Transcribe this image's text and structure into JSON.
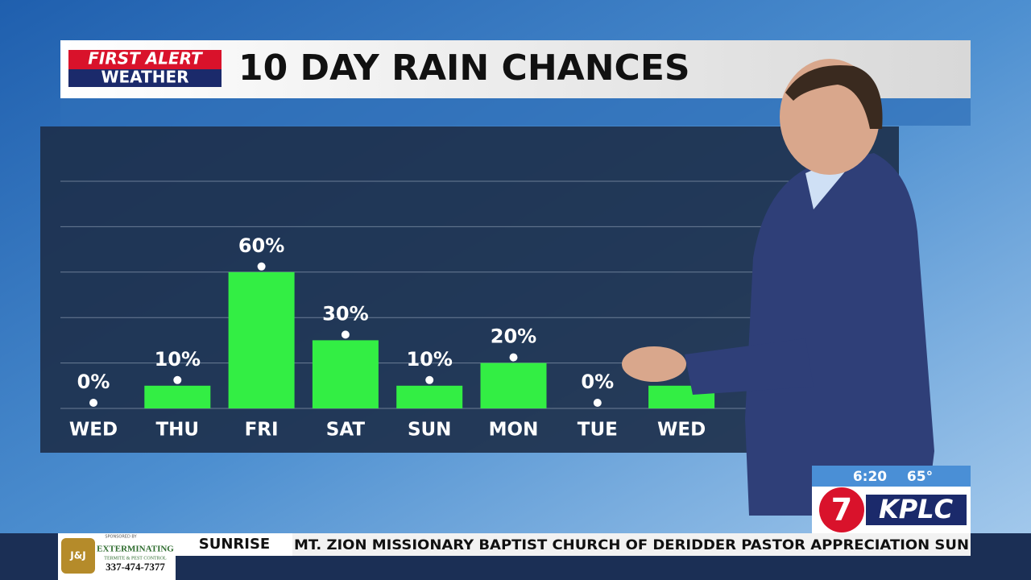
{
  "chart_data": {
    "type": "bar",
    "title": "10 DAY RAIN CHANCES",
    "categories": [
      "WED",
      "THU",
      "FRI",
      "SAT",
      "SUN",
      "MON",
      "TUE",
      "WED"
    ],
    "values": [
      0,
      10,
      60,
      30,
      10,
      20,
      0,
      10
    ],
    "value_labels": [
      "0%",
      "10%",
      "60%",
      "30%",
      "10%",
      "20%",
      "0%",
      null
    ],
    "color": "#33ee44",
    "ylim": [
      0,
      100
    ],
    "yticks": [
      0,
      20,
      40,
      60,
      80,
      100
    ],
    "grid": true
  },
  "header": {
    "logo_line1": "FIRST ALERT",
    "logo_line2": "WEATHER"
  },
  "station": {
    "time": "6:20",
    "temperature": "65°",
    "channel": "7",
    "call_sign": "KPLC"
  },
  "sponsor": {
    "label": "SPONSORED BY",
    "name": "EXTERMINATING",
    "subtitle": "TERMITE & PEST CONTROL",
    "phone": "337-474-7377",
    "initials": "J&J"
  },
  "ticker": {
    "segment": "SUNRISE",
    "text": "MT. ZION MISSIONARY BAPTIST CHURCH OF DERIDDER PASTOR APPRECIATION SUN"
  }
}
